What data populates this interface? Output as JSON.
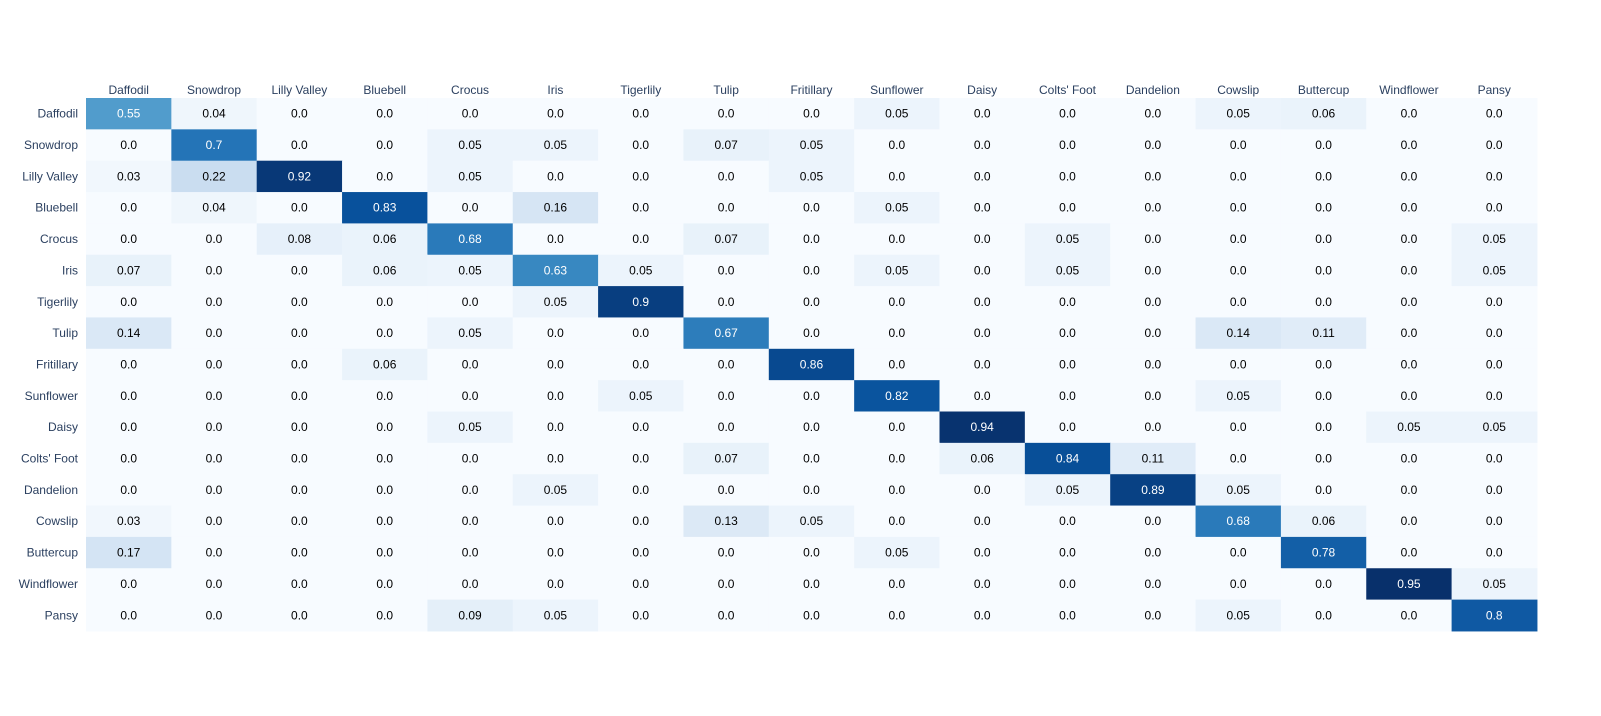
{
  "chart_data": {
    "type": "heatmap",
    "title": "",
    "xlabel": "",
    "ylabel": "",
    "x_axis_side": "top",
    "colorscale": "Blues",
    "color_low": "#f7fbff",
    "color_high": "#08306b",
    "zlim": [
      0,
      0.95
    ],
    "x": [
      "Daffodil",
      "Snowdrop",
      "Lilly Valley",
      "Bluebell",
      "Crocus",
      "Iris",
      "Tigerlily",
      "Tulip",
      "Fritillary",
      "Sunflower",
      "Daisy",
      "Colts' Foot",
      "Dandelion",
      "Cowslip",
      "Buttercup",
      "Windflower",
      "Pansy"
    ],
    "y": [
      "Daffodil",
      "Snowdrop",
      "Lilly Valley",
      "Bluebell",
      "Crocus",
      "Iris",
      "Tigerlily",
      "Tulip",
      "Fritillary",
      "Sunflower",
      "Daisy",
      "Colts' Foot",
      "Dandelion",
      "Cowslip",
      "Buttercup",
      "Windflower",
      "Pansy"
    ],
    "z": [
      [
        "0.55",
        "0.04",
        "0.0",
        "0.0",
        "0.0",
        "0.0",
        "0.0",
        "0.0",
        "0.0",
        "0.05",
        "0.0",
        "0.0",
        "0.0",
        "0.05",
        "0.06",
        "0.0",
        "0.0"
      ],
      [
        "0.0",
        "0.7",
        "0.0",
        "0.0",
        "0.05",
        "0.05",
        "0.0",
        "0.07",
        "0.05",
        "0.0",
        "0.0",
        "0.0",
        "0.0",
        "0.0",
        "0.0",
        "0.0",
        "0.0"
      ],
      [
        "0.03",
        "0.22",
        "0.92",
        "0.0",
        "0.05",
        "0.0",
        "0.0",
        "0.0",
        "0.05",
        "0.0",
        "0.0",
        "0.0",
        "0.0",
        "0.0",
        "0.0",
        "0.0",
        "0.0"
      ],
      [
        "0.0",
        "0.04",
        "0.0",
        "0.83",
        "0.0",
        "0.16",
        "0.0",
        "0.0",
        "0.0",
        "0.05",
        "0.0",
        "0.0",
        "0.0",
        "0.0",
        "0.0",
        "0.0",
        "0.0"
      ],
      [
        "0.0",
        "0.0",
        "0.08",
        "0.06",
        "0.68",
        "0.0",
        "0.0",
        "0.07",
        "0.0",
        "0.0",
        "0.0",
        "0.05",
        "0.0",
        "0.0",
        "0.0",
        "0.0",
        "0.05"
      ],
      [
        "0.07",
        "0.0",
        "0.0",
        "0.06",
        "0.05",
        "0.63",
        "0.05",
        "0.0",
        "0.0",
        "0.05",
        "0.0",
        "0.05",
        "0.0",
        "0.0",
        "0.0",
        "0.0",
        "0.05"
      ],
      [
        "0.0",
        "0.0",
        "0.0",
        "0.0",
        "0.0",
        "0.05",
        "0.9",
        "0.0",
        "0.0",
        "0.0",
        "0.0",
        "0.0",
        "0.0",
        "0.0",
        "0.0",
        "0.0",
        "0.0"
      ],
      [
        "0.14",
        "0.0",
        "0.0",
        "0.0",
        "0.05",
        "0.0",
        "0.0",
        "0.67",
        "0.0",
        "0.0",
        "0.0",
        "0.0",
        "0.0",
        "0.14",
        "0.11",
        "0.0",
        "0.0"
      ],
      [
        "0.0",
        "0.0",
        "0.0",
        "0.06",
        "0.0",
        "0.0",
        "0.0",
        "0.0",
        "0.86",
        "0.0",
        "0.0",
        "0.0",
        "0.0",
        "0.0",
        "0.0",
        "0.0",
        "0.0"
      ],
      [
        "0.0",
        "0.0",
        "0.0",
        "0.0",
        "0.0",
        "0.0",
        "0.05",
        "0.0",
        "0.0",
        "0.82",
        "0.0",
        "0.0",
        "0.0",
        "0.05",
        "0.0",
        "0.0",
        "0.0"
      ],
      [
        "0.0",
        "0.0",
        "0.0",
        "0.0",
        "0.05",
        "0.0",
        "0.0",
        "0.0",
        "0.0",
        "0.0",
        "0.94",
        "0.0",
        "0.0",
        "0.0",
        "0.0",
        "0.05",
        "0.05"
      ],
      [
        "0.0",
        "0.0",
        "0.0",
        "0.0",
        "0.0",
        "0.0",
        "0.0",
        "0.07",
        "0.0",
        "0.0",
        "0.06",
        "0.84",
        "0.11",
        "0.0",
        "0.0",
        "0.0",
        "0.0"
      ],
      [
        "0.0",
        "0.0",
        "0.0",
        "0.0",
        "0.0",
        "0.05",
        "0.0",
        "0.0",
        "0.0",
        "0.0",
        "0.0",
        "0.05",
        "0.89",
        "0.05",
        "0.0",
        "0.0",
        "0.0"
      ],
      [
        "0.03",
        "0.0",
        "0.0",
        "0.0",
        "0.0",
        "0.0",
        "0.0",
        "0.13",
        "0.05",
        "0.0",
        "0.0",
        "0.0",
        "0.0",
        "0.68",
        "0.06",
        "0.0",
        "0.0"
      ],
      [
        "0.17",
        "0.0",
        "0.0",
        "0.0",
        "0.0",
        "0.0",
        "0.0",
        "0.0",
        "0.0",
        "0.05",
        "0.0",
        "0.0",
        "0.0",
        "0.0",
        "0.78",
        "0.0",
        "0.0"
      ],
      [
        "0.0",
        "0.0",
        "0.0",
        "0.0",
        "0.0",
        "0.0",
        "0.0",
        "0.0",
        "0.0",
        "0.0",
        "0.0",
        "0.0",
        "0.0",
        "0.0",
        "0.0",
        "0.95",
        "0.05"
      ],
      [
        "0.0",
        "0.0",
        "0.0",
        "0.0",
        "0.09",
        "0.05",
        "0.0",
        "0.0",
        "0.0",
        "0.0",
        "0.0",
        "0.0",
        "0.0",
        "0.05",
        "0.0",
        "0.0",
        "0.8"
      ]
    ],
    "grid": false,
    "legend": "none"
  }
}
